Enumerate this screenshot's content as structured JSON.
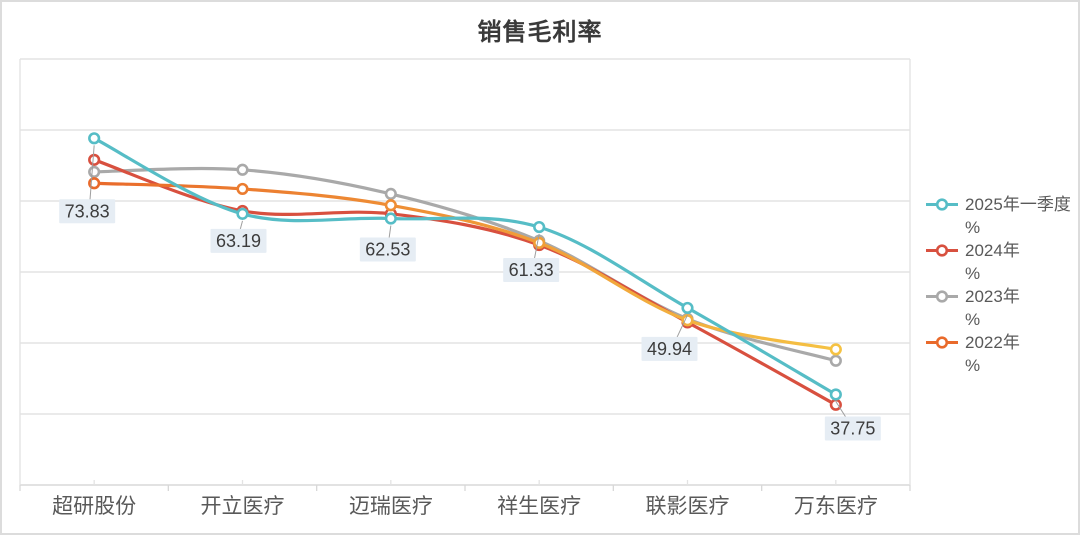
{
  "title": "销售毛利率",
  "chart_data": {
    "type": "line",
    "title": "销售毛利率",
    "categories": [
      "超研股份",
      "开立医疗",
      "迈瑞医疗",
      "祥生医疗",
      "联影医疗",
      "万东医疗"
    ],
    "series": [
      {
        "name": "2025年一季度%",
        "legend_lines": [
          "2025年一季度",
          "%"
        ],
        "color": "#56BDC6",
        "values": [
          73.83,
          63.19,
          62.53,
          61.33,
          49.94,
          37.75
        ],
        "show_labels": true
      },
      {
        "name": "2024年%",
        "legend_lines": [
          "2024年",
          "%"
        ],
        "color": "#D8503F",
        "values": [
          70.8,
          63.6,
          63.2,
          58.8,
          47.9,
          36.3
        ]
      },
      {
        "name": "2023年%",
        "legend_lines": [
          "2023年",
          "%"
        ],
        "color": "#A9A9A9",
        "values": [
          69.1,
          69.4,
          66.0,
          59.4,
          48.4,
          42.5
        ]
      },
      {
        "name": "2022年%",
        "legend_lines": [
          "2022年",
          "%"
        ],
        "color": "#F08B28",
        "color_start": "#E96A2B",
        "color_end": "#F5C243",
        "values": [
          67.5,
          66.7,
          64.4,
          59.1,
          48.2,
          44.1
        ]
      }
    ],
    "data_labels": {
      "series": "2025年一季度%",
      "values": [
        "73.83",
        "63.19",
        "62.53",
        "61.33",
        "49.94",
        "37.75"
      ]
    },
    "y_axis": {
      "min": 25,
      "max": 85,
      "grid_step": 10,
      "tick_labels_visible": false
    },
    "grid": true,
    "smooth": true,
    "legend_position": "right"
  },
  "style_colors": {
    "grid_line": "#E3E3E3",
    "axis_line": "#D8D8D8",
    "label_background": "#E6EDF4",
    "label_text": "#3C3C3C",
    "category_text": "#595959",
    "legend_text": "#595959",
    "title_text": "#3A3A3A",
    "leader_line": "#9E9E9E"
  }
}
